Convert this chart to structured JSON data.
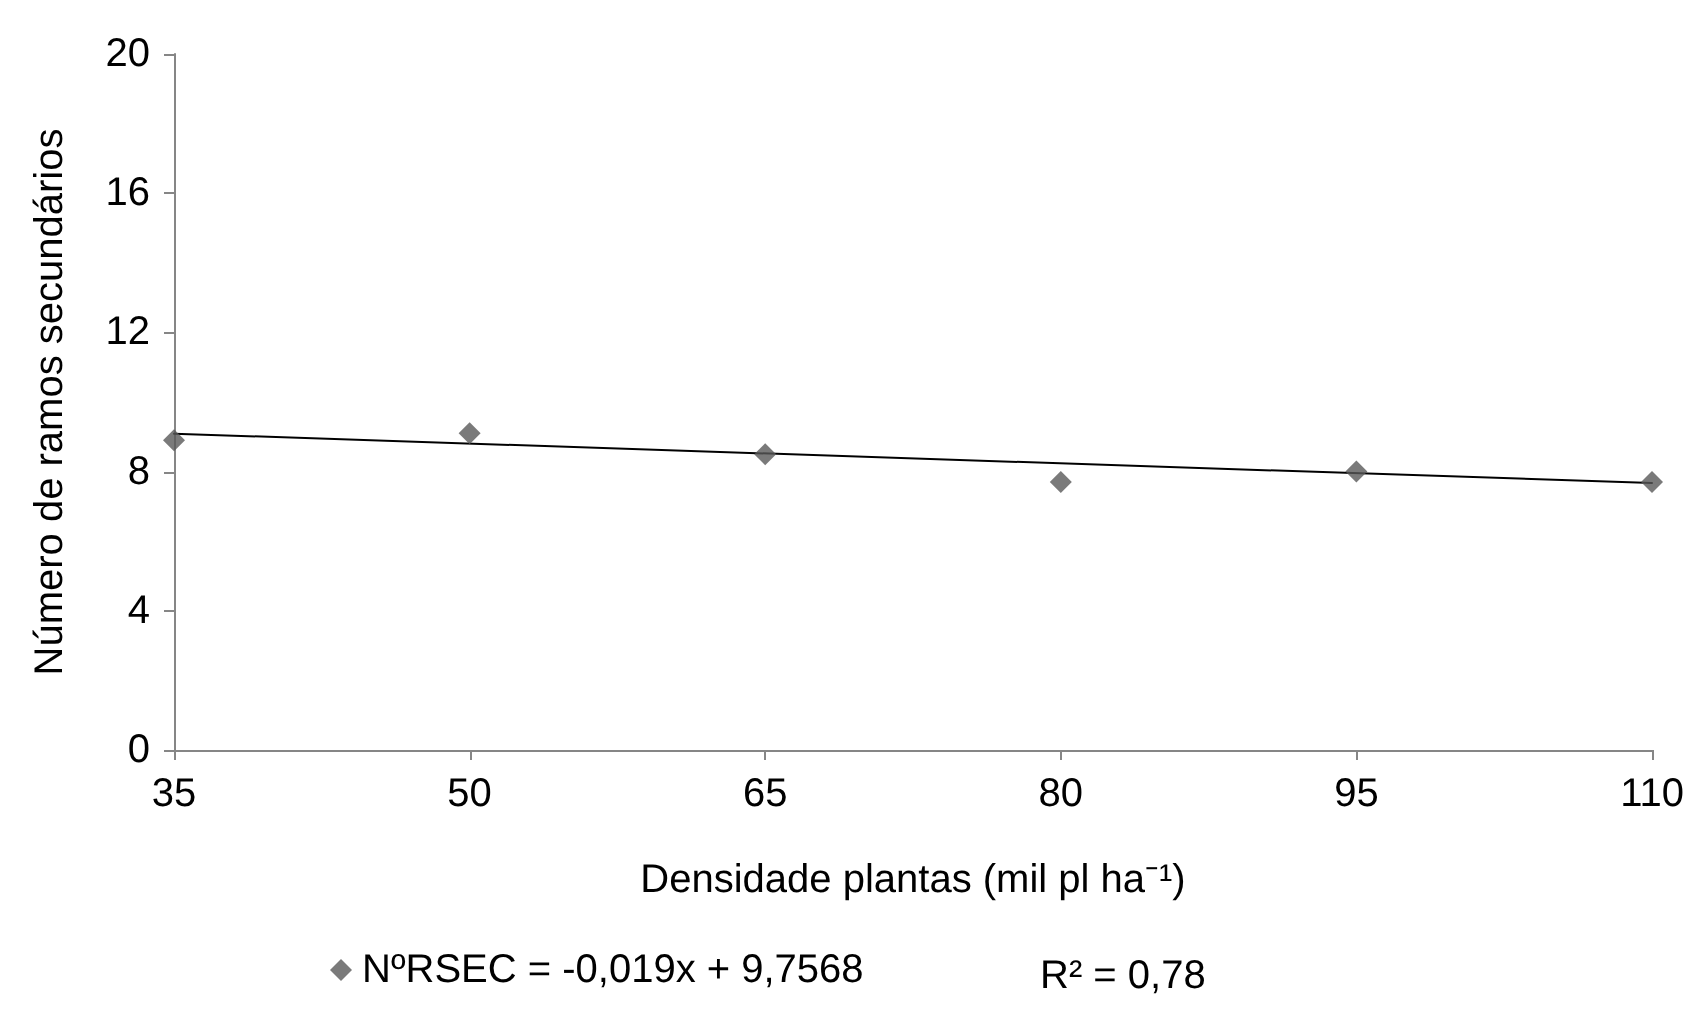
{
  "chart_data": {
    "type": "scatter",
    "xlabel": "Densidade plantas (mil pl ha⁻¹)",
    "ylabel": "Número de ramos secundários",
    "x": [
      35,
      50,
      65,
      80,
      95,
      110
    ],
    "series": [
      {
        "name": "NºRSEC = -0,019x + 9,7568",
        "color": "#595959",
        "values": [
          8.9,
          9.1,
          8.5,
          7.7,
          8.0,
          7.7
        ],
        "marker": "diamond"
      },
      {
        "type": "line",
        "color": "#000000",
        "x": [
          35,
          110
        ],
        "values": [
          9.09,
          7.67
        ],
        "marker": "none",
        "line_style": "solid"
      }
    ],
    "annotations": [
      "R² = 0,78"
    ],
    "xlim": [
      35,
      110
    ],
    "xticks": [
      35,
      50,
      65,
      80,
      95,
      110
    ],
    "ylim": [
      0,
      20
    ],
    "yticks": [
      0,
      4,
      8,
      12,
      16,
      20
    ],
    "grid": false,
    "legend": "bottom"
  }
}
